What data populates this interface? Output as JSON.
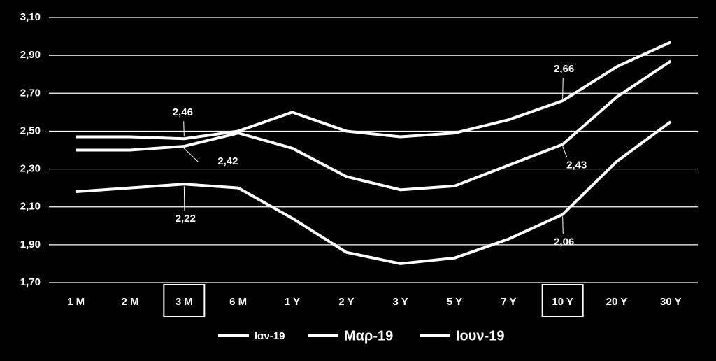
{
  "chart_data": {
    "type": "line",
    "categories": [
      "1 M",
      "2 M",
      "3 M",
      "6 M",
      "1 Y",
      "2 Y",
      "3 Y",
      "5 Y",
      "7 Y",
      "10 Y",
      "20 Y",
      "30 Y"
    ],
    "series": [
      {
        "name": "Ιαν-19",
        "color": "#ffffff",
        "values": [
          2.47,
          2.47,
          2.46,
          2.5,
          2.6,
          2.5,
          2.47,
          2.49,
          2.56,
          2.66,
          2.84,
          2.97
        ],
        "value_labels": [
          null,
          null,
          "2,46",
          null,
          null,
          null,
          null,
          null,
          null,
          "2,66",
          null,
          null
        ]
      },
      {
        "name": "Μαρ-19",
        "color": "#ffffff",
        "values": [
          2.4,
          2.4,
          2.42,
          2.49,
          2.41,
          2.26,
          2.19,
          2.21,
          2.32,
          2.43,
          2.68,
          2.87
        ],
        "value_labels": [
          null,
          null,
          "2,42",
          null,
          null,
          null,
          null,
          null,
          null,
          "2,43",
          null,
          null
        ]
      },
      {
        "name": "Ιουν-19",
        "color": "#ffffff",
        "values": [
          2.18,
          2.2,
          2.22,
          2.2,
          2.04,
          1.86,
          1.8,
          1.83,
          1.93,
          2.06,
          2.34,
          2.55
        ],
        "value_labels": [
          null,
          null,
          "2,22",
          null,
          null,
          null,
          null,
          null,
          null,
          "2,06",
          null,
          null
        ]
      }
    ],
    "ylim": [
      1.7,
      3.1
    ],
    "yticks": [
      {
        "value": 1.7,
        "label": "1,70"
      },
      {
        "value": 1.9,
        "label": "1,90"
      },
      {
        "value": 2.1,
        "label": "2,10"
      },
      {
        "value": 2.3,
        "label": "2,30"
      },
      {
        "value": 2.5,
        "label": "2,50"
      },
      {
        "value": 2.7,
        "label": "2,70"
      },
      {
        "value": 2.9,
        "label": "2,90"
      },
      {
        "value": 3.1,
        "label": "3,10"
      }
    ],
    "grid": true,
    "highlighted_categories": [
      2,
      9
    ],
    "legend": "bottom"
  }
}
